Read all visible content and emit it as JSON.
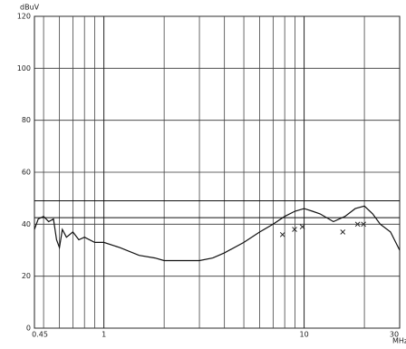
{
  "chart_data": {
    "type": "line",
    "y_label": "dBuV",
    "x_label": "MHz",
    "log_x": true,
    "xlim": [
      0.45,
      30
    ],
    "ylim": [
      0,
      120
    ],
    "xticks": [
      0.45,
      1,
      10,
      30
    ],
    "yticks": [
      0,
      20,
      40,
      60,
      80,
      100,
      120
    ],
    "x_gridlines": [
      0.5,
      0.6,
      0.7,
      0.8,
      0.9,
      2,
      3,
      4,
      5,
      6,
      7,
      8,
      9,
      20
    ],
    "limit_lines": [
      49,
      42.5
    ],
    "color": "#111111",
    "x": [
      0.45,
      0.47,
      0.5,
      0.53,
      0.56,
      0.58,
      0.6,
      0.62,
      0.65,
      0.7,
      0.75,
      0.8,
      0.9,
      1,
      1.2,
      1.5,
      1.8,
      2,
      2.5,
      3,
      3.5,
      4,
      5,
      6,
      7,
      8,
      9,
      10,
      11,
      12,
      14,
      16,
      18,
      20,
      22,
      24,
      27,
      30
    ],
    "values": [
      38,
      42,
      43,
      41,
      42,
      34,
      31,
      38,
      35,
      37,
      34,
      35,
      33,
      33,
      31,
      28,
      27,
      26,
      26,
      26,
      27,
      29,
      33,
      37,
      40,
      43,
      45,
      46,
      45,
      44,
      41,
      43,
      46,
      47,
      44,
      40,
      37,
      30
    ],
    "marker_x": [
      7.8,
      8.96,
      9.8,
      15.6,
      18.5,
      19.8
    ],
    "marker_values": [
      36,
      38,
      39,
      37,
      40,
      40
    ]
  }
}
